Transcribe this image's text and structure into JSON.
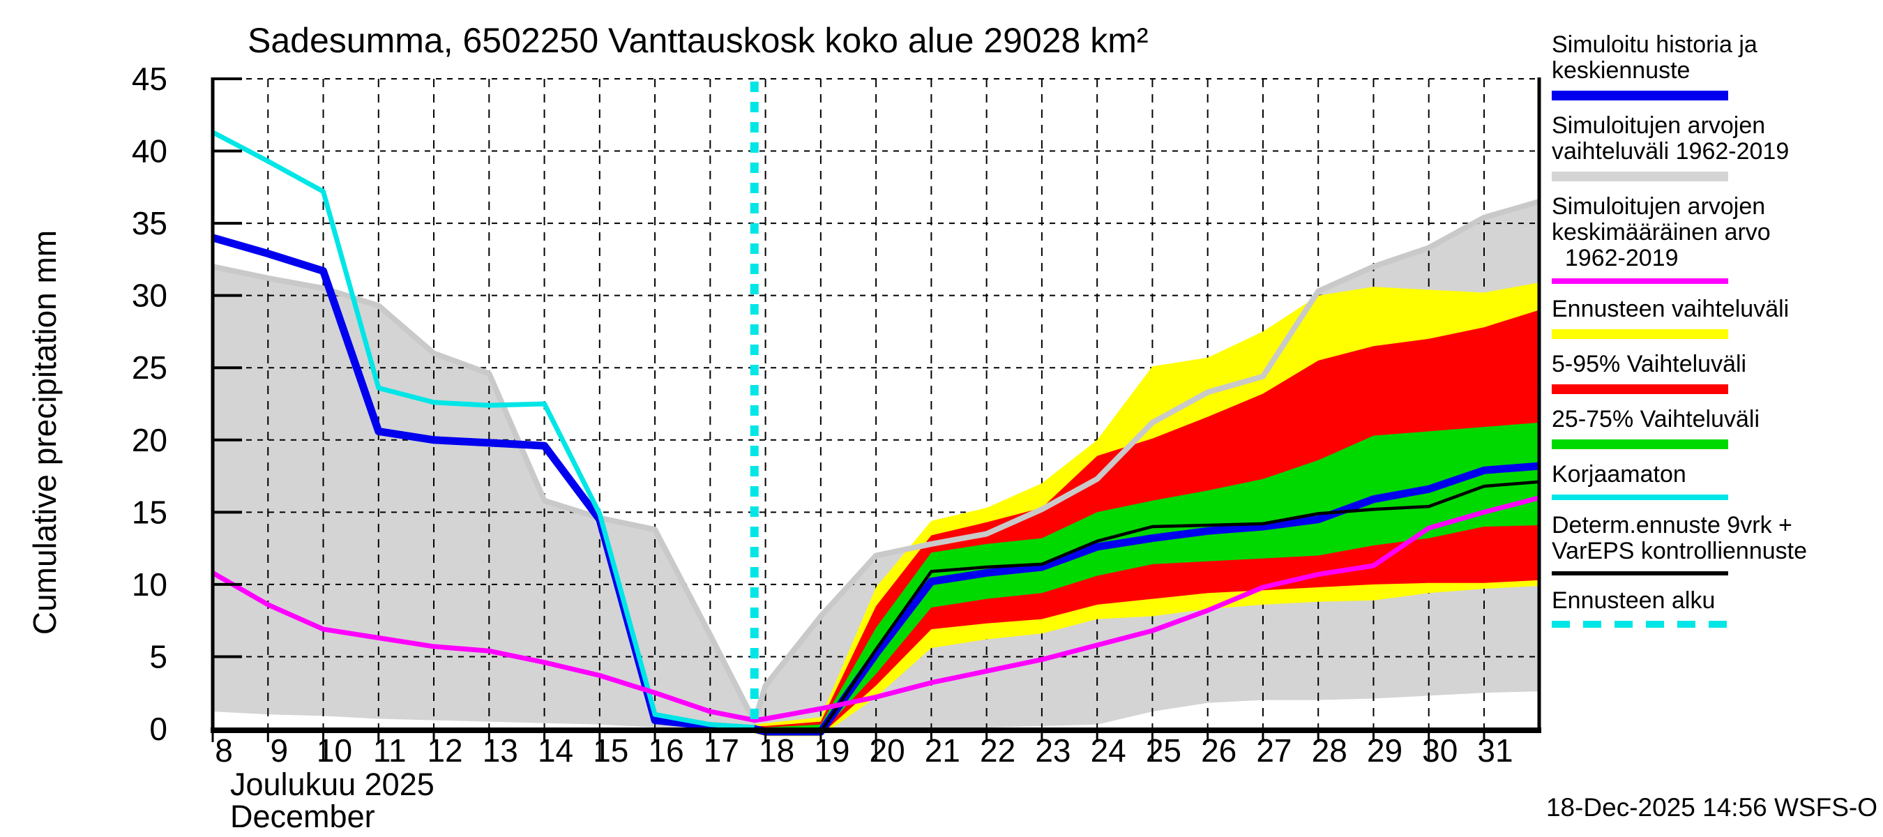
{
  "title": "Sadesumma, 6502250 Vanttauskosk koko alue 29028 km²",
  "y_axis": {
    "label": "Cumulative precipitation  mm",
    "ticks": [
      0,
      5,
      10,
      15,
      20,
      25,
      30,
      35,
      40,
      45
    ]
  },
  "x_axis": {
    "day_labels": [
      8,
      9,
      10,
      11,
      12,
      13,
      14,
      15,
      16,
      17,
      18,
      19,
      20,
      21,
      22,
      23,
      24,
      25,
      26,
      27,
      28,
      29,
      30,
      31
    ],
    "long_tick_days": [
      10,
      15,
      20,
      25,
      30
    ],
    "month_fi": "Joulukuu  2025",
    "month_en": "December"
  },
  "footer": {
    "timestamp": "18-Dec-2025 14:56 WSFS-O"
  },
  "colors": {
    "blue": "#0000ee",
    "cyan": "#00e6e6",
    "magenta": "#ff00ff",
    "yellow": "#ffff00",
    "red": "#ff0000",
    "green": "#00d900",
    "gray": "#d4d4d4",
    "gray_edge": "#c9c9c9",
    "black": "#000000"
  },
  "legend": {
    "items": [
      {
        "lines": [
          "Simuloitu historia ja",
          "keskiennuste"
        ],
        "style": "line",
        "color_key": "blue",
        "thickness": 14
      },
      {
        "lines": [
          "Simuloitujen arvojen",
          "vaihteluväli 1962-2019"
        ],
        "style": "line",
        "color_key": "gray",
        "thickness": 14
      },
      {
        "lines": [
          "Simuloitujen arvojen",
          "keskimääräinen arvo",
          "  1962-2019"
        ],
        "style": "line",
        "color_key": "magenta",
        "thickness": 8
      },
      {
        "lines": [
          "Ennusteen vaihteluväli"
        ],
        "style": "line",
        "color_key": "yellow",
        "thickness": 14
      },
      {
        "lines": [
          "5-95% Vaihteluväli"
        ],
        "style": "line",
        "color_key": "red",
        "thickness": 14
      },
      {
        "lines": [
          "25-75% Vaihteluväli"
        ],
        "style": "line",
        "color_key": "green",
        "thickness": 14
      },
      {
        "lines": [
          "Korjaamaton"
        ],
        "style": "line",
        "color_key": "cyan",
        "thickness": 8
      },
      {
        "lines": [
          "Determ.ennuste 9vrk +",
          "VarEPS kontrolliennuste"
        ],
        "style": "line",
        "color_key": "black",
        "thickness": 6
      },
      {
        "lines": [
          "Ennusteen alku"
        ],
        "style": "dashed",
        "color_key": "cyan",
        "thickness": 10
      }
    ]
  },
  "chart_data": {
    "type": "line",
    "title": "Sadesumma, 6502250 Vanttauskosk koko alue 29028 km²",
    "xlabel": "Joulukuu 2025 / December (day of month)",
    "ylabel": "Cumulative precipitation mm",
    "xlim": [
      8,
      32
    ],
    "ylim": [
      0,
      45
    ],
    "grid": true,
    "forecast_start_day": 17.8,
    "history": {
      "days": [
        8,
        9,
        10,
        11,
        12,
        13,
        14,
        15,
        16,
        17,
        17.8
      ],
      "uncorrected_cyan": [
        41.3,
        39.3,
        37.2,
        23.6,
        22.6,
        22.4,
        22.5,
        14.9,
        1.0,
        0.3,
        0.1
      ],
      "simulated_blue": [
        34.0,
        32.9,
        31.7,
        20.6,
        20.0,
        19.8,
        19.6,
        14.5,
        0.6,
        0.2,
        0.0
      ],
      "mean_1962_2019": [
        10.8,
        8.6,
        6.9,
        6.3,
        5.7,
        5.4,
        4.6,
        3.7,
        2.5,
        1.2,
        0.6
      ],
      "sim_range_top": [
        32.0,
        31.2,
        30.5,
        29.3,
        26.0,
        24.6,
        15.8,
        14.6,
        13.8,
        6.5,
        0.5
      ],
      "sim_range_bottom": [
        1.2,
        1.0,
        0.9,
        0.7,
        0.6,
        0.5,
        0.4,
        0.3,
        0.1,
        0.0,
        0.0
      ]
    },
    "forecast": {
      "days": [
        17.8,
        18,
        19,
        20,
        21,
        22,
        23,
        24,
        25,
        26,
        27,
        28,
        29,
        30,
        31,
        32
      ],
      "mean_forecast_blue": [
        0.0,
        -0.2,
        -0.2,
        5.2,
        10.2,
        10.8,
        11.2,
        12.6,
        13.2,
        13.7,
        14.0,
        14.5,
        15.9,
        16.6,
        17.9,
        18.2
      ],
      "determ_black": [
        0.0,
        -0.2,
        -0.2,
        5.5,
        10.9,
        11.2,
        11.4,
        13.0,
        14.0,
        14.1,
        14.2,
        14.9,
        15.2,
        15.4,
        16.8,
        17.1
      ],
      "mean_1962_2019": [
        0.6,
        0.7,
        1.4,
        2.2,
        3.2,
        4.0,
        4.8,
        5.8,
        6.8,
        8.2,
        9.8,
        10.7,
        11.3,
        13.9,
        15.0,
        16.0
      ],
      "p25_75_top": [
        0.1,
        0.1,
        0.3,
        7.0,
        12.2,
        12.8,
        13.2,
        15.0,
        15.8,
        16.5,
        17.3,
        18.6,
        20.3,
        20.6,
        20.9,
        21.2
      ],
      "p25_75_bottom": [
        -0.1,
        -0.3,
        -0.3,
        3.8,
        8.4,
        9.0,
        9.4,
        10.6,
        11.4,
        11.6,
        11.8,
        12.0,
        12.7,
        13.2,
        14.0,
        14.1
      ],
      "p5_95_top": [
        0.2,
        0.2,
        0.5,
        8.5,
        13.4,
        14.3,
        15.3,
        18.9,
        20.1,
        21.6,
        23.2,
        25.5,
        26.5,
        27.0,
        27.8,
        29.0
      ],
      "p5_95_bottom": [
        -0.2,
        -0.4,
        -0.4,
        3.0,
        6.9,
        7.3,
        7.6,
        8.6,
        9.0,
        9.4,
        9.6,
        9.8,
        10.0,
        10.1,
        10.1,
        10.3
      ],
      "range_top_yellow": [
        0.3,
        0.4,
        0.8,
        9.8,
        14.4,
        15.3,
        17.0,
        20.0,
        25.1,
        25.7,
        27.5,
        30.0,
        30.6,
        30.4,
        30.2,
        30.9
      ],
      "range_bottom_yellow": [
        -0.3,
        -0.5,
        -0.5,
        2.2,
        5.6,
        6.2,
        6.6,
        7.6,
        7.8,
        8.3,
        8.6,
        8.8,
        8.9,
        9.4,
        9.7,
        9.9
      ],
      "sim_range_top": [
        0.5,
        3.0,
        7.8,
        12.0,
        12.8,
        13.5,
        15.2,
        17.3,
        21.2,
        23.3,
        24.4,
        30.3,
        32.0,
        33.3,
        35.4,
        36.5
      ],
      "sim_range_bottom": [
        0.0,
        0.0,
        0.0,
        0.0,
        0.1,
        0.1,
        0.2,
        0.3,
        1.2,
        1.8,
        2.0,
        2.0,
        2.1,
        2.3,
        2.5,
        2.6
      ]
    }
  }
}
